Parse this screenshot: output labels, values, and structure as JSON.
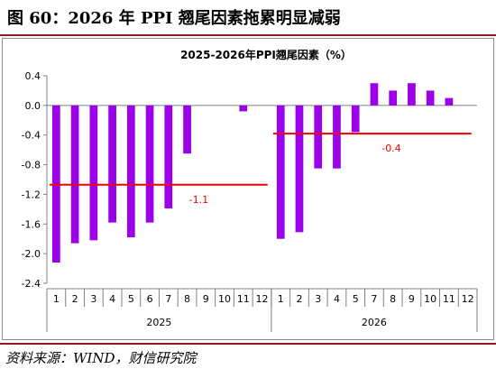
{
  "figure_title": "图 60：2026 年 PPI 翘尾因素拖累明显减弱",
  "source": "资料来源：WIND，财信研究院",
  "colors": {
    "bar": "#9b00e8",
    "avg_line": "#ee0000",
    "rule": "#8b1a1a"
  },
  "chart_data": {
    "type": "bar",
    "title": "2025-2026年PPI翘尾因素（%）",
    "ylim": [
      -2.4,
      0.4
    ],
    "yticks": [
      "0.4",
      "0.0",
      "-0.4",
      "-0.8",
      "-1.2",
      "-1.6",
      "-2.0",
      "-2.4"
    ],
    "grid": false,
    "legend": "none",
    "groups": [
      {
        "label": "2025",
        "categories": [
          "1",
          "2",
          "3",
          "4",
          "5",
          "6",
          "7",
          "8",
          "9",
          "10",
          "11",
          "12"
        ],
        "values": [
          -2.12,
          -1.86,
          -1.82,
          -1.58,
          -1.78,
          -1.58,
          -1.39,
          -0.65,
          0.0,
          0.0,
          -0.08,
          0.0
        ],
        "average": {
          "value": -1.07,
          "label": "-1.1"
        }
      },
      {
        "label": "2026",
        "categories": [
          "1",
          "2",
          "3",
          "4",
          "5",
          "7",
          "8",
          "9",
          "10",
          "11",
          "12"
        ],
        "values": [
          -1.8,
          -1.71,
          -0.85,
          -0.85,
          -0.36,
          0.3,
          0.2,
          0.3,
          0.2,
          0.1,
          0.0
        ],
        "average": {
          "value": -0.38,
          "label": "-0.4"
        }
      }
    ]
  }
}
